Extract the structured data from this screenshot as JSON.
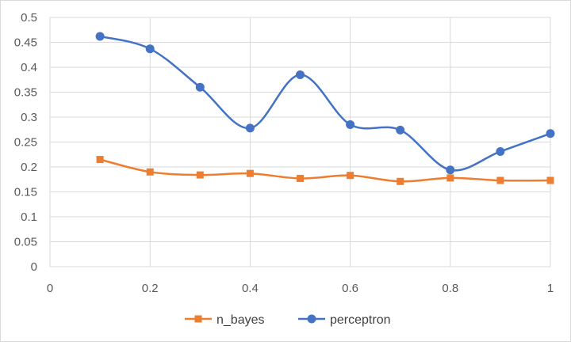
{
  "chart_data": {
    "type": "line",
    "title": "",
    "xlabel": "",
    "ylabel": "",
    "x": [
      0.1,
      0.2,
      0.3,
      0.4,
      0.5,
      0.6,
      0.7,
      0.8,
      0.9,
      1.0
    ],
    "xlim": [
      0,
      1
    ],
    "ylim": [
      0,
      0.5
    ],
    "x_ticks": [
      "0",
      "0.2",
      "0.4",
      "0.6",
      "0.8",
      "1"
    ],
    "y_ticks": [
      "0",
      "0.05",
      "0.1",
      "0.15",
      "0.2",
      "0.25",
      "0.3",
      "0.35",
      "0.4",
      "0.45",
      "0.5"
    ],
    "grid": true,
    "smooth": true,
    "legend_position": "bottom",
    "series": [
      {
        "name": "n_bayes",
        "color": "#ED7D31",
        "marker": "square",
        "values": [
          0.215,
          0.19,
          0.184,
          0.187,
          0.177,
          0.183,
          0.171,
          0.178,
          0.173,
          0.173
        ]
      },
      {
        "name": "perceptron",
        "color": "#4472C4",
        "marker": "circle",
        "values": [
          0.462,
          0.437,
          0.36,
          0.278,
          0.385,
          0.285,
          0.274,
          0.194,
          0.231,
          0.267
        ]
      }
    ]
  }
}
